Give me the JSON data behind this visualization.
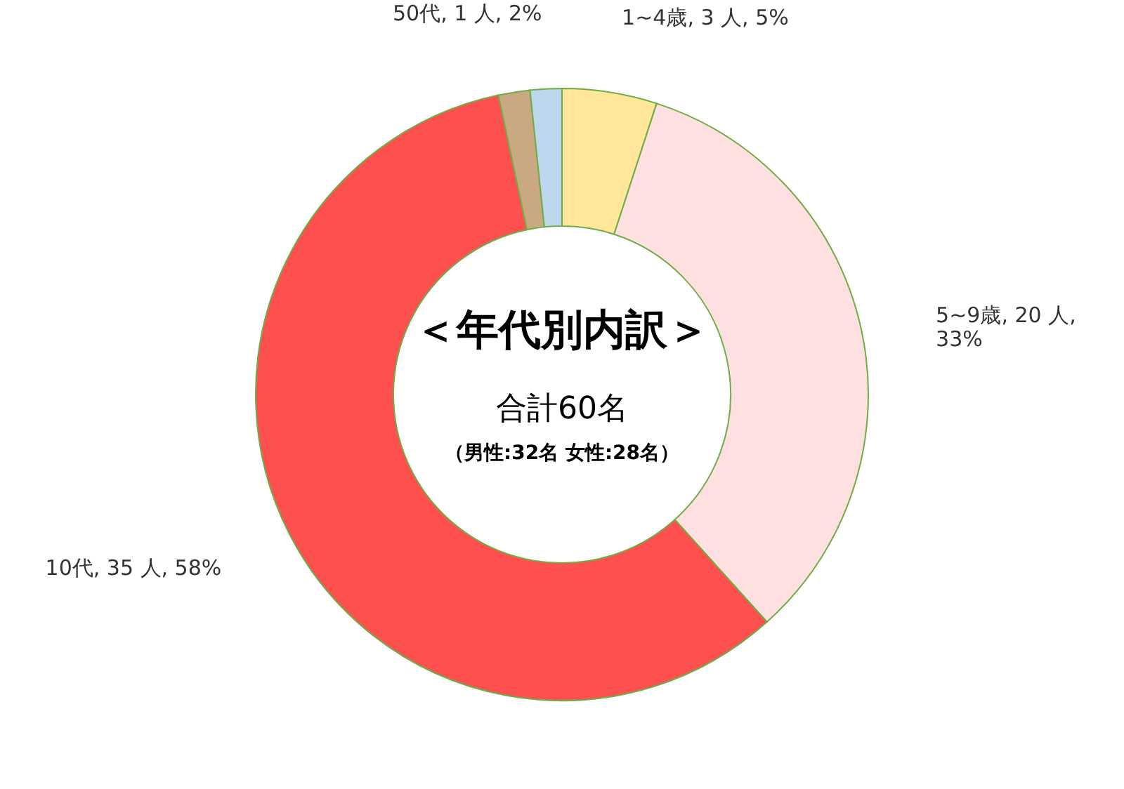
{
  "chart_data": {
    "type": "donut",
    "title": "＜年代別内訳＞",
    "subtitle": "合計60名",
    "annotations": [
      "（男性:32名  女性:28名）"
    ],
    "categories": [
      "1~4歳",
      "5~9歳",
      "10代",
      null,
      "50代"
    ],
    "values": [
      3,
      20,
      35,
      1,
      1
    ],
    "colors": [
      "#ffe699",
      "#ffe0e0",
      "#ff5050",
      "#c9a882",
      "#bdd7ee"
    ],
    "value_labels": [
      "3 人, 5%",
      "20 人, 33%",
      "35 人, 58%",
      null,
      "1 人, 2%"
    ]
  }
}
